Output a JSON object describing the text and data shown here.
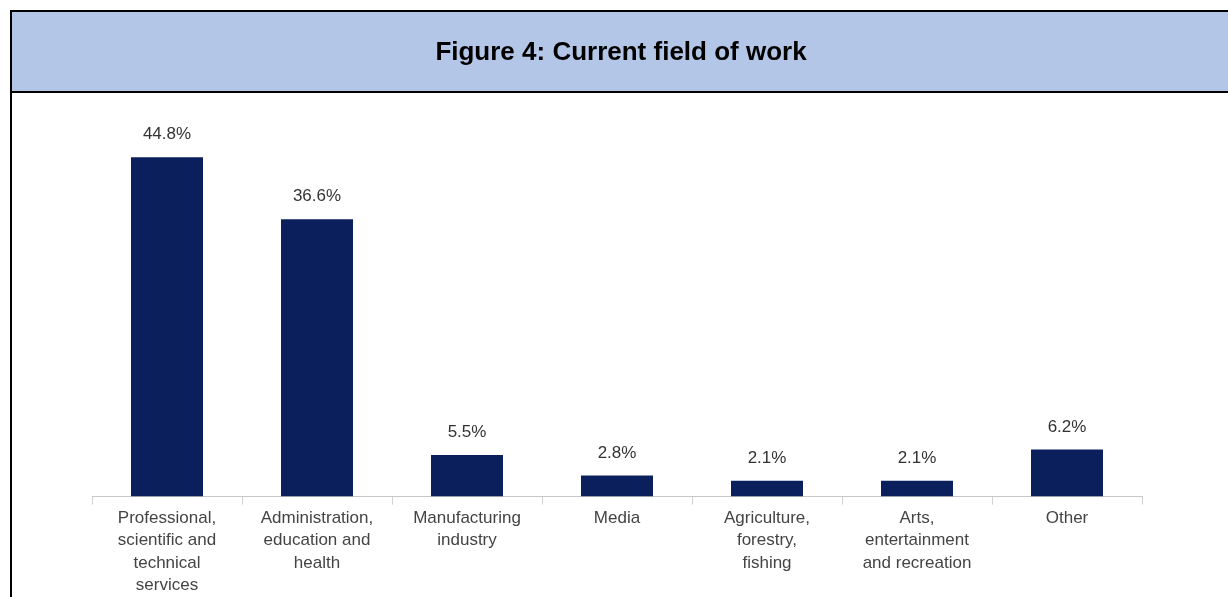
{
  "chart_data": {
    "type": "bar",
    "title": "Figure 4: Current field of work",
    "categories": [
      "Professional, scientific and technical services",
      "Administration, education and health",
      "Manufacturing industry",
      "Media",
      "Agriculture, forestry, fishing",
      "Arts, entertainment and recreation",
      "Other"
    ],
    "values": [
      44.8,
      36.6,
      5.5,
      2.8,
      2.1,
      2.1,
      6.2
    ],
    "value_labels": [
      "44.8%",
      "36.6%",
      "5.5%",
      "2.8%",
      "2.1%",
      "2.1%",
      "6.2%"
    ],
    "color": "#0b1f5c",
    "tick_labels": "x",
    "legend": false,
    "grid": false
  }
}
